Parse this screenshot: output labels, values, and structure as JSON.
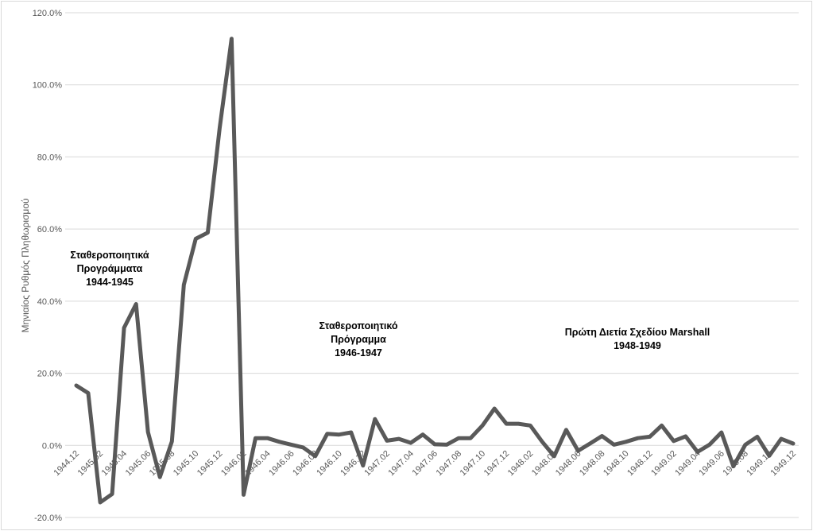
{
  "chart_data": {
    "type": "line",
    "title": "",
    "xlabel": "",
    "ylabel": "Μηνιαίος Ρυθμός Πληθωρισμού",
    "ylim": [
      -20,
      120
    ],
    "yticks": [
      -20,
      0,
      20,
      40,
      60,
      80,
      100,
      120
    ],
    "ytick_labels": [
      "-20.0%",
      "0.0%",
      "20.0%",
      "40.0%",
      "60.0%",
      "80.0%",
      "100.0%",
      "120.0%"
    ],
    "grid": true,
    "line_color": "#595959",
    "categories": [
      "1944.12",
      "1945.01",
      "1945.02",
      "1945.03",
      "1945.04",
      "1945.05",
      "1945.06",
      "1945.07",
      "1945.08",
      "1945.09",
      "1945.10",
      "1945.11",
      "1945.12",
      "1946.01",
      "1946.02",
      "1946.03",
      "1946.04",
      "1946.05",
      "1946.06",
      "1946.07",
      "1946.08",
      "1946.09",
      "1946.10",
      "1946.11",
      "1946.12",
      "1947.01",
      "1947.02",
      "1947.03",
      "1947.04",
      "1947.05",
      "1947.06",
      "1947.07",
      "1947.08",
      "1947.09",
      "1947.10",
      "1947.11",
      "1947.12",
      "1948.01",
      "1948.02",
      "1948.03",
      "1948.04",
      "1948.05",
      "1948.06",
      "1948.07",
      "1948.08",
      "1948.09",
      "1948.10",
      "1948.11",
      "1948.12",
      "1949.01",
      "1949.02",
      "1949.03",
      "1949.04",
      "1949.05",
      "1949.06",
      "1949.07",
      "1949.08",
      "1949.09",
      "1949.10",
      "1949.11",
      "1949.12"
    ],
    "xtick_labels": [
      "1944.12",
      "1945.02",
      "1945.04",
      "1945.06",
      "1945.08",
      "1945.10",
      "1945.12",
      "1946.02",
      "1946.04",
      "1946.06",
      "1946.08",
      "1946.10",
      "1946.12",
      "1947.02",
      "1947.04",
      "1947.06",
      "1947.08",
      "1947.10",
      "1947.12",
      "1948.02",
      "1948.04",
      "1948.06",
      "1948.08",
      "1948.10",
      "1948.12",
      "1949.02",
      "1949.04",
      "1949.06",
      "1949.08",
      "1949.10",
      "1949.12"
    ],
    "values": [
      16.6,
      14.5,
      -15.8,
      -13.5,
      32.6,
      39.2,
      3.7,
      -8.8,
      1.1,
      44.5,
      57.3,
      59.0,
      88.0,
      112.8,
      -13.7,
      2.0,
      2.0,
      1.0,
      0.2,
      -0.6,
      -3.0,
      3.2,
      3.0,
      3.6,
      -5.6,
      7.3,
      1.3,
      1.8,
      0.7,
      3.0,
      0.3,
      0.2,
      2.0,
      2.0,
      5.5,
      10.2,
      6.0,
      6.0,
      5.5,
      1.0,
      -3.0,
      4.3,
      -1.5,
      0.5,
      2.6,
      0.2,
      1.0,
      2.0,
      2.4,
      5.5,
      1.2,
      2.5,
      -1.8,
      0.2,
      3.6,
      -5.8,
      0.2,
      2.4,
      -2.9,
      1.8,
      0.5
    ],
    "annotations": [
      {
        "lines": [
          "Σταθεροποιητικά",
          "Προγράμματα",
          "1944-1945"
        ]
      },
      {
        "lines": [
          "Σταθεροποιητικό",
          "Πρόγραμμα",
          "1946-1947"
        ]
      },
      {
        "lines": [
          "Πρώτη Διετία Σχεδίου Marshall",
          "1948-1949"
        ]
      }
    ]
  }
}
